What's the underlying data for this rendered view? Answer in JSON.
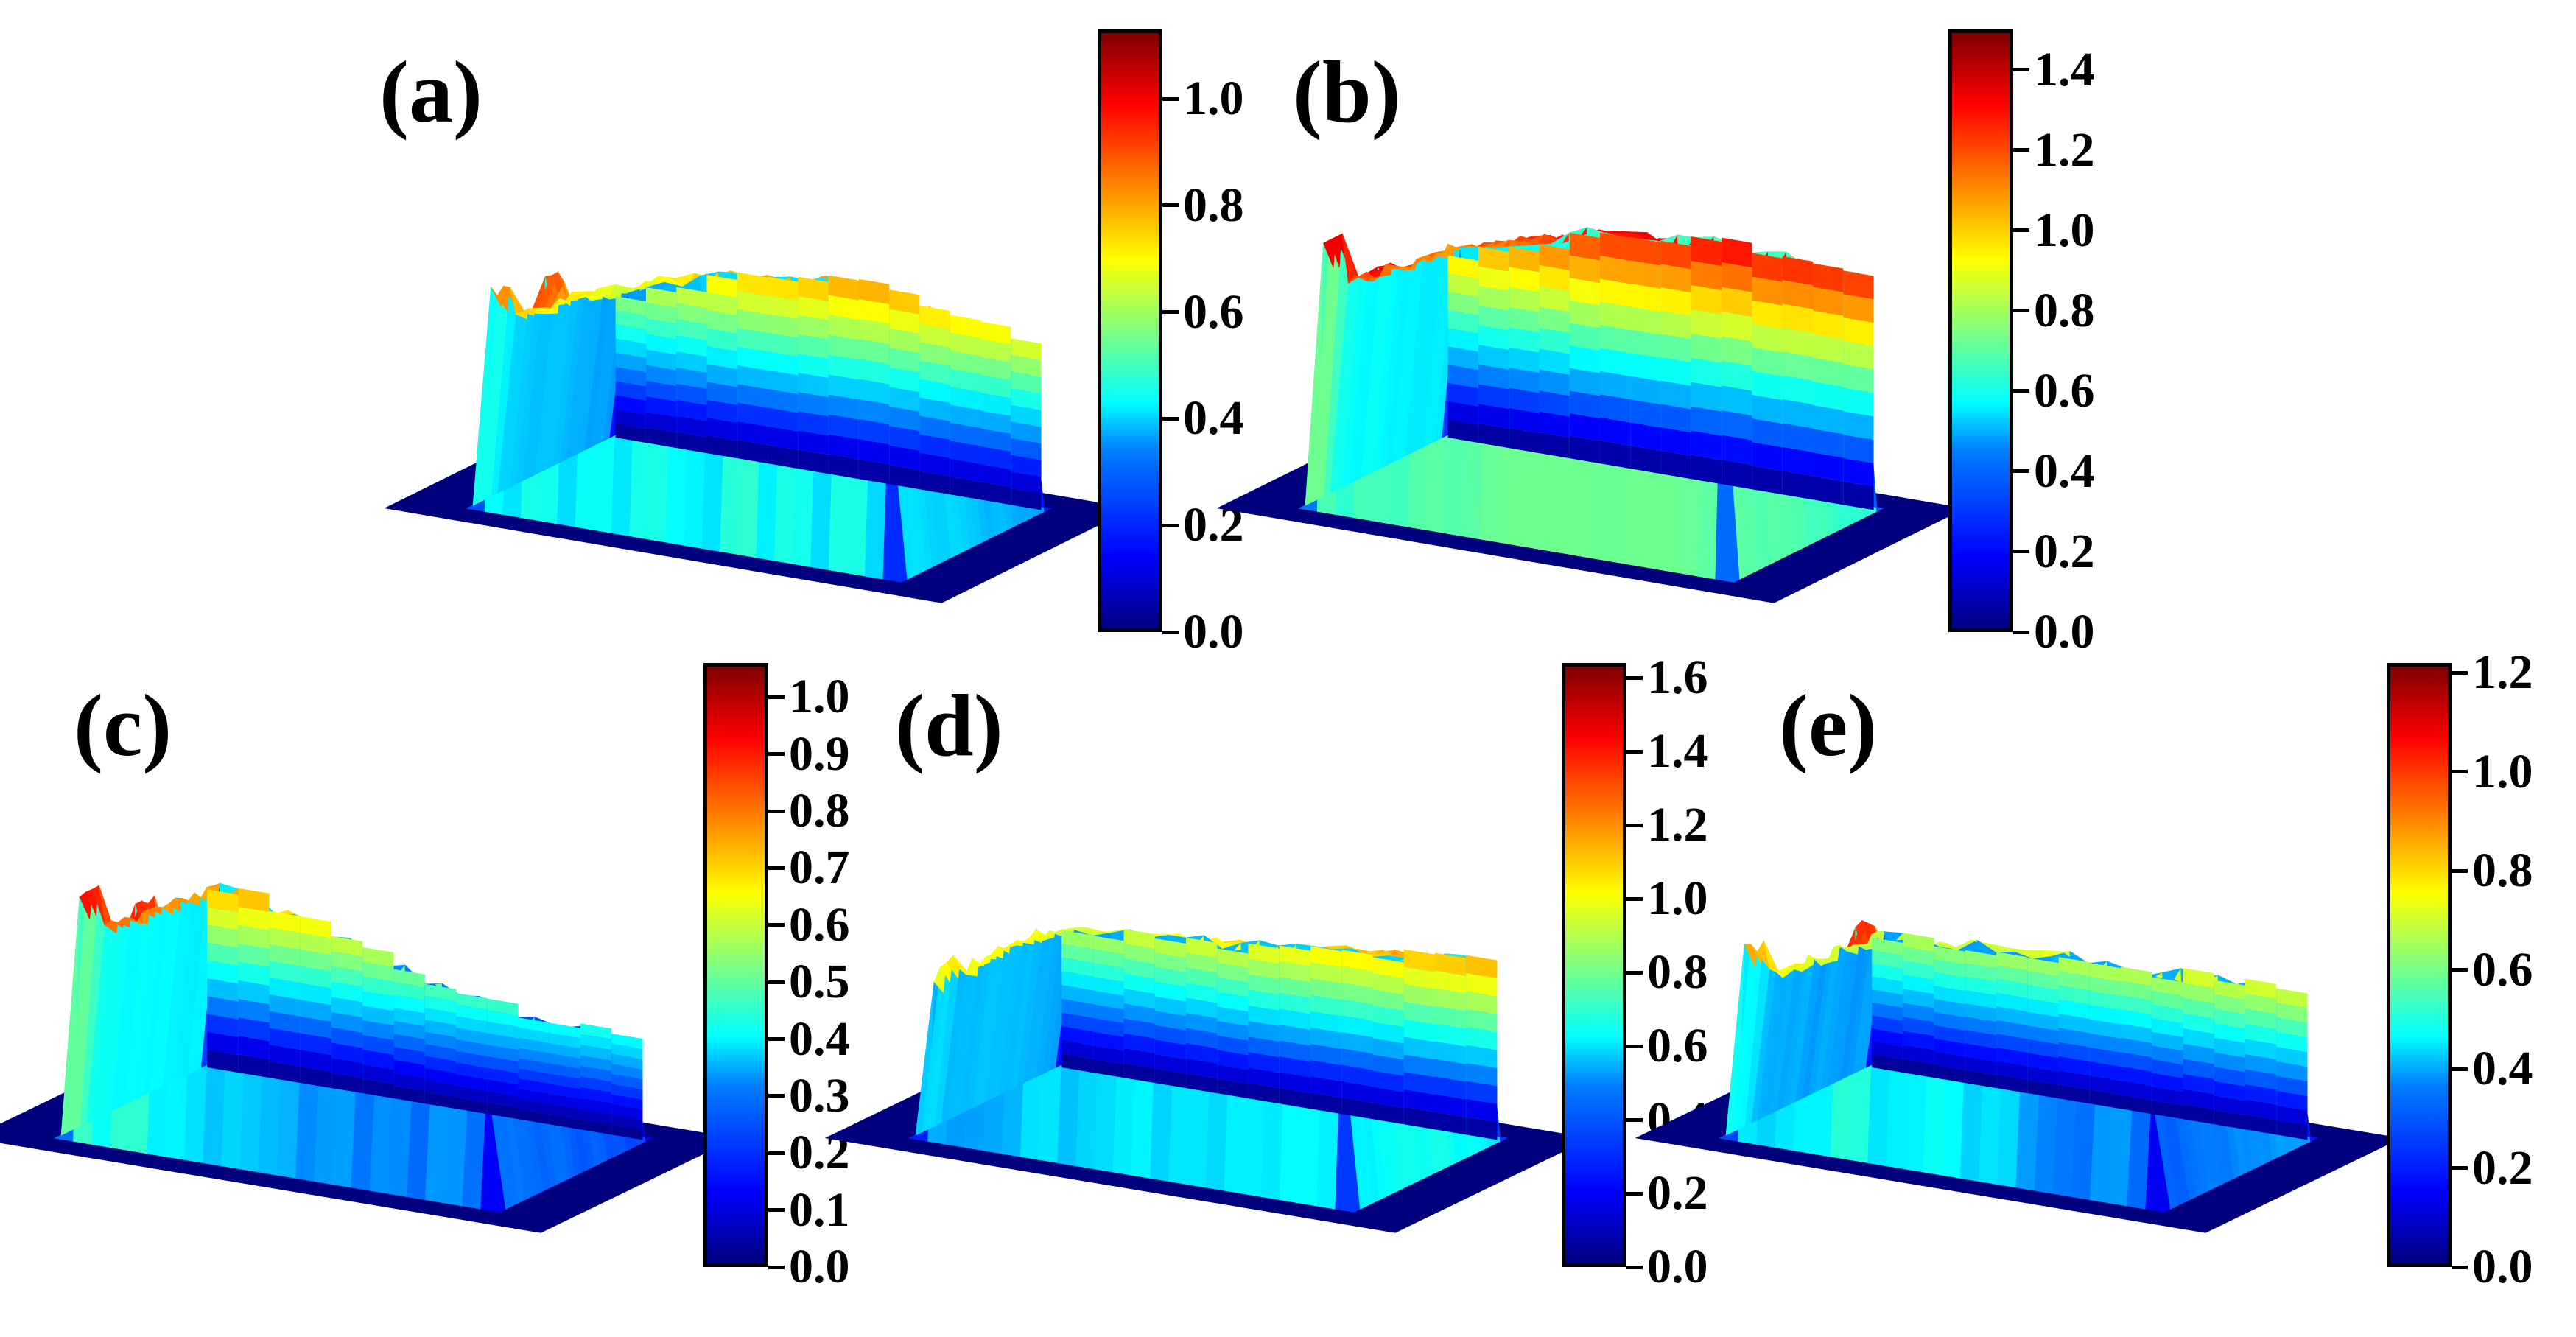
{
  "chart_data": [
    {
      "type": "surface",
      "panel_label": "(a)",
      "colorbar": {
        "min": 0.0,
        "max": 1.13,
        "ticks": [
          0.0,
          0.2,
          0.4,
          0.6,
          0.8,
          1.0
        ],
        "tick_labels": [
          "0.0",
          "0.2",
          "0.4",
          "0.6",
          "0.8",
          "1.0"
        ],
        "colormap": "jet"
      },
      "peak_value": 1.1
    },
    {
      "type": "surface",
      "panel_label": "(b)",
      "colorbar": {
        "min": 0.0,
        "max": 1.5,
        "ticks": [
          0.0,
          0.2,
          0.4,
          0.6,
          0.8,
          1.0,
          1.2,
          1.4
        ],
        "tick_labels": [
          "0.0",
          "0.2",
          "0.4",
          "0.6",
          "0.8",
          "1.0",
          "1.2",
          "1.4"
        ],
        "colormap": "jet"
      },
      "peak_value": 1.45
    },
    {
      "type": "surface",
      "panel_label": "(c)",
      "colorbar": {
        "min": 0.0,
        "max": 1.06,
        "ticks": [
          0.0,
          0.1,
          0.2,
          0.3,
          0.4,
          0.5,
          0.6,
          0.7,
          0.8,
          0.9,
          1.0
        ],
        "tick_labels": [
          "0.0",
          "0.1",
          "0.2",
          "0.3",
          "0.4",
          "0.5",
          "0.6",
          "0.7",
          "0.8",
          "0.9",
          "1.0"
        ],
        "colormap": "jet"
      },
      "peak_value": 1.0
    },
    {
      "type": "surface",
      "panel_label": "(d)",
      "colorbar": {
        "min": 0.0,
        "max": 1.64,
        "ticks": [
          0.0,
          0.2,
          0.4,
          0.6,
          0.8,
          1.0,
          1.2,
          1.4,
          1.6
        ],
        "tick_labels": [
          "0.0",
          "0.2",
          "0.4",
          "0.6",
          "0.8",
          "1.0",
          "1.2",
          "1.4",
          "1.6"
        ],
        "colormap": "jet"
      },
      "peak_value": 1.6
    },
    {
      "type": "surface",
      "panel_label": "(e)",
      "colorbar": {
        "min": 0.0,
        "max": 1.22,
        "ticks": [
          0.0,
          0.2,
          0.4,
          0.6,
          0.8,
          1.0,
          1.2
        ],
        "tick_labels": [
          "0.0",
          "0.2",
          "0.4",
          "0.6",
          "0.8",
          "1.0",
          "1.2"
        ],
        "colormap": "jet"
      },
      "peak_value": 1.2
    }
  ]
}
